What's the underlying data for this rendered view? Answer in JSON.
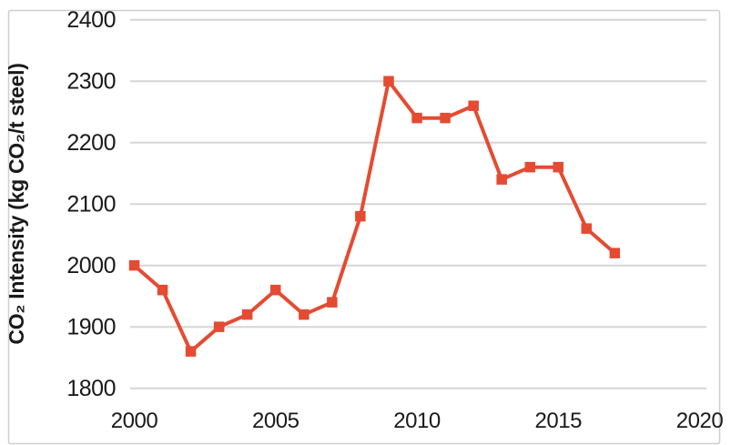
{
  "chart_data": {
    "type": "line",
    "title": "",
    "xlabel": "",
    "ylabel": "CO₂ Intensity (kg CO₂/t steel)",
    "x": [
      2000,
      2001,
      2002,
      2003,
      2004,
      2005,
      2006,
      2007,
      2008,
      2009,
      2010,
      2011,
      2012,
      2013,
      2014,
      2015,
      2016,
      2017
    ],
    "series": [
      {
        "name": "CO2 intensity",
        "values": [
          2000,
          1960,
          1860,
          1900,
          1920,
          1960,
          1920,
          1940,
          2080,
          2300,
          2240,
          2240,
          2260,
          2140,
          2160,
          2160,
          2060,
          2020
        ]
      }
    ],
    "xlim": [
      2000,
      2020
    ],
    "ylim": [
      1800,
      2400
    ],
    "x_ticks": [
      2000,
      2005,
      2010,
      2015,
      2020
    ],
    "y_ticks": [
      1800,
      1900,
      2000,
      2100,
      2200,
      2300,
      2400
    ],
    "grid": "horizontal",
    "legend": "none",
    "marker": "square"
  },
  "styles": {
    "line_color": "#E44B32",
    "marker_color": "#E44B32",
    "grid_color": "#D6D6D6",
    "border_color": "#CFCFCF",
    "text_color": "#1A1A1A",
    "background": "#FFFFFF"
  }
}
